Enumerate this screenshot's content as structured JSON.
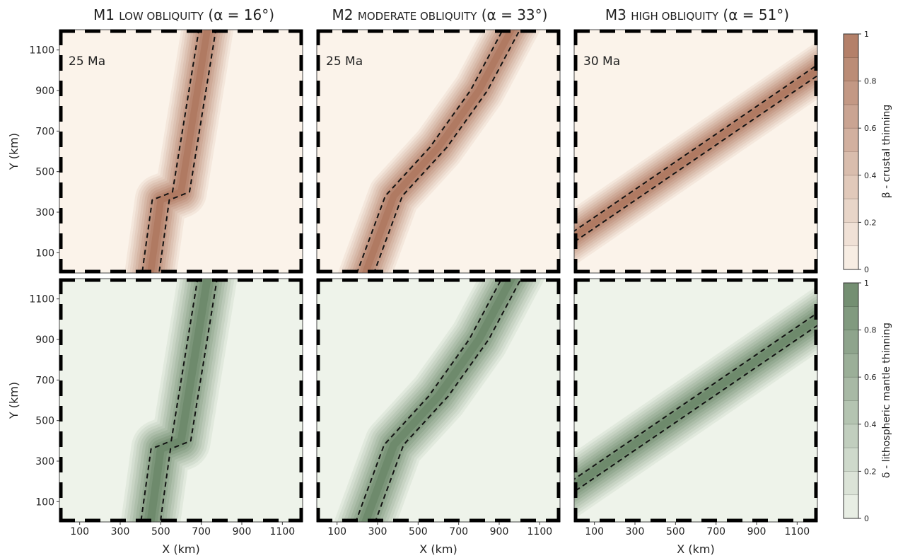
{
  "figure": {
    "columns": [
      {
        "model": "M1",
        "subtitle": "LOW OBLIQUITY",
        "angle": "(α = 16°)"
      },
      {
        "model": "M2",
        "subtitle": "MODERATE OBLIQUITY",
        "angle": "(α = 33°)"
      },
      {
        "model": "M3",
        "subtitle": "HIGH OBLIQUITY",
        "angle": "(α = 51°)"
      }
    ],
    "panel_time_labels": [
      "25 Ma",
      "25 Ma",
      "30 Ma"
    ],
    "colorbars": [
      {
        "label": "β - crustal thinning",
        "ticks": [
          "0",
          "0.2",
          "0.4",
          "0.6",
          "0.8",
          "1"
        ],
        "low_color": "#fbf3ea",
        "high_color": "#b07a62"
      },
      {
        "label": "δ - lithospheric mantle thinning",
        "ticks": [
          "0",
          "0.2",
          "0.4",
          "0.6",
          "0.8",
          "1"
        ],
        "low_color": "#eef3ea",
        "high_color": "#6e8a6c"
      }
    ]
  },
  "chart_data": [
    {
      "type": "heatmap",
      "panel": "M1 crustal thinning",
      "xlabel": "",
      "ylabel": "Y (km)",
      "xlim": [
        0,
        1200
      ],
      "ylim": [
        0,
        1200
      ],
      "xticks": [
        "100",
        "300",
        "500",
        "700",
        "900",
        "1100"
      ],
      "yticks": [
        "100",
        "300",
        "500",
        "700",
        "900",
        "1100"
      ],
      "levels": [
        0,
        0.1,
        0.2,
        0.3,
        0.4,
        0.5,
        0.6,
        0.7,
        0.8,
        0.9,
        1.0
      ],
      "axis_x_at_y": [
        [
          0,
          450
        ],
        [
          360,
          500
        ],
        [
          400,
          600
        ],
        [
          1200,
          730
        ]
      ],
      "half_width_km": 140,
      "dashed_boundary": "β = 0.8"
    },
    {
      "type": "heatmap",
      "panel": "M2 crustal thinning",
      "xlabel": "",
      "ylabel": "",
      "xlim": [
        0,
        1200
      ],
      "ylim": [
        0,
        1200
      ],
      "xticks": [
        "100",
        "300",
        "500",
        "700",
        "900",
        "1100"
      ],
      "yticks": [
        "100",
        "300",
        "500",
        "700",
        "900",
        "1100"
      ],
      "levels": [
        0,
        0.1,
        0.2,
        0.3,
        0.4,
        0.5,
        0.6,
        0.7,
        0.8,
        0.9,
        1.0
      ],
      "axis_x_at_y": [
        [
          0,
          240
        ],
        [
          380,
          380
        ],
        [
          620,
          600
        ],
        [
          900,
          800
        ],
        [
          1200,
          960
        ]
      ],
      "half_width_km": 140,
      "dashed_boundary": "β = 0.8"
    },
    {
      "type": "heatmap",
      "panel": "M3 crustal thinning",
      "xlabel": "",
      "ylabel": "",
      "xlim": [
        0,
        1200
      ],
      "ylim": [
        0,
        1200
      ],
      "xticks": [
        "100",
        "300",
        "500",
        "700",
        "900",
        "1100"
      ],
      "yticks": [
        "100",
        "300",
        "500",
        "700",
        "900",
        "1100"
      ],
      "levels": [
        0,
        0.1,
        0.2,
        0.3,
        0.4,
        0.5,
        0.6,
        0.7,
        0.8,
        0.9,
        1.0
      ],
      "axis_x_at_y": [
        [
          180,
          0
        ],
        [
          1000,
          1200
        ]
      ],
      "half_width_km": 130,
      "dashed_boundary": "β = 0.8"
    },
    {
      "type": "heatmap",
      "panel": "M1 lithospheric mantle thinning",
      "xlabel": "X (km)",
      "ylabel": "Y (km)",
      "xlim": [
        0,
        1200
      ],
      "ylim": [
        0,
        1200
      ],
      "xticks": [
        "100",
        "300",
        "500",
        "700",
        "900",
        "1100"
      ],
      "yticks": [
        "100",
        "300",
        "500",
        "700",
        "900",
        "1100"
      ],
      "levels": [
        0,
        0.1,
        0.2,
        0.3,
        0.4,
        0.5,
        0.6,
        0.7,
        0.8,
        0.9,
        1.0
      ],
      "axis_x_at_y": [
        [
          0,
          450
        ],
        [
          360,
          500
        ],
        [
          400,
          600
        ],
        [
          1200,
          730
        ]
      ],
      "half_width_km": 160,
      "dashed_boundary": "β = 0.8"
    },
    {
      "type": "heatmap",
      "panel": "M2 lithospheric mantle thinning",
      "xlabel": "X (km)",
      "ylabel": "",
      "xlim": [
        0,
        1200
      ],
      "ylim": [
        0,
        1200
      ],
      "xticks": [
        "100",
        "300",
        "500",
        "700",
        "900",
        "1100"
      ],
      "yticks": [
        "100",
        "300",
        "500",
        "700",
        "900",
        "1100"
      ],
      "levels": [
        0,
        0.1,
        0.2,
        0.3,
        0.4,
        0.5,
        0.6,
        0.7,
        0.8,
        0.9,
        1.0
      ],
      "axis_x_at_y": [
        [
          0,
          240
        ],
        [
          380,
          380
        ],
        [
          620,
          600
        ],
        [
          900,
          800
        ],
        [
          1200,
          960
        ]
      ],
      "half_width_km": 160,
      "dashed_boundary": "β = 0.8"
    },
    {
      "type": "heatmap",
      "panel": "M3 lithospheric mantle thinning",
      "xlabel": "X (km)",
      "ylabel": "",
      "xlim": [
        0,
        1200
      ],
      "ylim": [
        0,
        1200
      ],
      "xticks": [
        "100",
        "300",
        "500",
        "700",
        "900",
        "1100"
      ],
      "yticks": [
        "100",
        "300",
        "500",
        "700",
        "900",
        "1100"
      ],
      "levels": [
        0,
        0.1,
        0.2,
        0.3,
        0.4,
        0.5,
        0.6,
        0.7,
        0.8,
        0.9,
        1.0
      ],
      "axis_x_at_y": [
        [
          180,
          0
        ],
        [
          1000,
          1200
        ]
      ],
      "half_width_km": 150,
      "dashed_boundary": "β = 0.8"
    }
  ]
}
